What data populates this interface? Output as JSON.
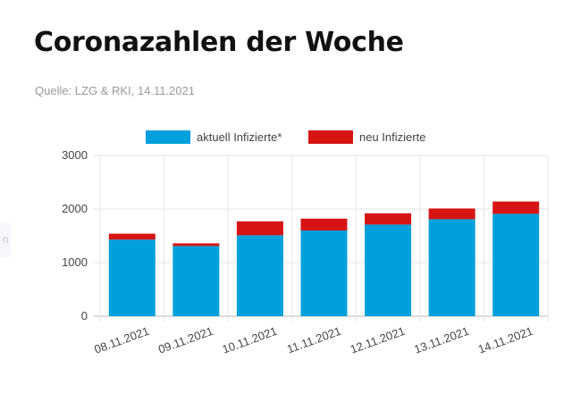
{
  "header": {
    "title": "Coronazahlen der Woche",
    "source": "Quelle: LZG & RKI, 14.11.2021"
  },
  "left_fragment": "n",
  "colors": {
    "aktuell": "#00a0dc",
    "neu": "#d71414",
    "grid": "#e6e6e6",
    "axis_text": "#444444"
  },
  "chart_data": {
    "type": "bar",
    "stacked": true,
    "categories": [
      "08.11.2021",
      "09.11.2021",
      "10.11.2021",
      "11.11.2021",
      "12.11.2021",
      "13.11.2021",
      "14.11.2021"
    ],
    "series": [
      {
        "name": "aktuell Infizierte*",
        "color": "#00a0dc",
        "values": [
          1430,
          1310,
          1510,
          1600,
          1710,
          1810,
          1910
        ]
      },
      {
        "name": "neu Infizierte",
        "color": "#d71414",
        "values": [
          110,
          50,
          260,
          220,
          210,
          200,
          230
        ]
      }
    ],
    "y_ticks": [
      "0",
      "1000",
      "2000",
      "3000"
    ],
    "ylim": [
      0,
      3000
    ],
    "grid": true,
    "legend_position": "top"
  }
}
